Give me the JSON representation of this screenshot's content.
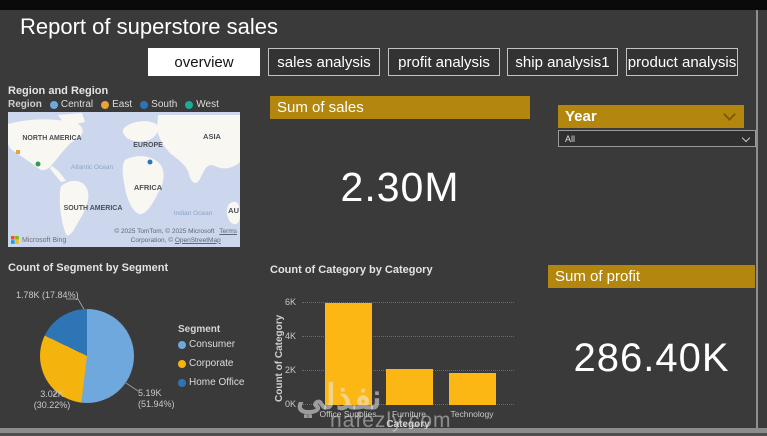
{
  "page": {
    "title": "Report of superstore sales"
  },
  "tabs": [
    {
      "label": "overview",
      "active": true
    },
    {
      "label": "sales analysis",
      "active": false
    },
    {
      "label": "profit analysis",
      "active": false
    },
    {
      "label": "ship analysis1",
      "active": false
    },
    {
      "label": "product analysis",
      "active": false
    }
  ],
  "colors": {
    "accent_gold": "#B3860D",
    "background": "#3A3A3A",
    "bar_yellow": "#FCB714"
  },
  "region_map": {
    "title": "Region and Region",
    "legend_title": "Region",
    "legend": [
      {
        "label": "Central",
        "color": "#6FA8DC"
      },
      {
        "label": "East",
        "color": "#E8A33D"
      },
      {
        "label": "South",
        "color": "#2E75B6"
      },
      {
        "label": "West",
        "color": "#1AAB9B"
      }
    ],
    "continents": {
      "na": "NORTH AMERICA",
      "sa": "SOUTH AMERICA",
      "eu": "EUROPE",
      "af": "AFRICA",
      "asia": "ASIA",
      "au": "AU"
    },
    "oceans": {
      "atlantic": "Atlantic Ocean",
      "indian": "Indian Ocean"
    },
    "attribution_line1": "© 2025 TomTom, © 2025 Microsoft",
    "terms_label": "Terms",
    "attribution_line2_prefix": "Corporation, © ",
    "osm_label": "OpenStreetMap",
    "brand": "Microsoft Bing"
  },
  "cards": {
    "sales": {
      "header": "Sum of sales",
      "value": "2.30M"
    },
    "profit": {
      "header": "Sum of profit",
      "value": "286.40K"
    }
  },
  "year_slicer": {
    "header": "Year",
    "selected": "All"
  },
  "chart_data": [
    {
      "type": "pie",
      "title": "Count of Segment by Segment",
      "legend_title": "Segment",
      "legend_position": "right",
      "series": [
        {
          "name": "Consumer",
          "value": 5190,
          "pct": 51.94,
          "label_line1": "5.19K",
          "label_line2": "(51.94%)",
          "color": "#6FA8DC"
        },
        {
          "name": "Corporate",
          "value": 3020,
          "pct": 30.22,
          "label_line1": "3.02K",
          "label_line2": "(30.22%)",
          "color": "#F5B30D"
        },
        {
          "name": "Home Office",
          "value": 1780,
          "pct": 17.84,
          "label_line1": "1.78K",
          "label_line2": "(17.84%)",
          "color": "#2E75B6"
        }
      ]
    },
    {
      "type": "bar",
      "title": "Count of Category by Category",
      "categories": [
        "Office Supplies",
        "Furniture",
        "Technology"
      ],
      "values": [
        6000,
        2100,
        1900
      ],
      "xlabel": "Category",
      "ylabel": "Count of Category",
      "ylim": [
        0,
        6000
      ],
      "yticks": [
        "0K",
        "2K",
        "4K",
        "6K"
      ],
      "grid": "dotted",
      "bar_color": "#FCB714"
    }
  ],
  "watermark": {
    "arabic": "نفذلي",
    "latin": "nafezly.com"
  }
}
